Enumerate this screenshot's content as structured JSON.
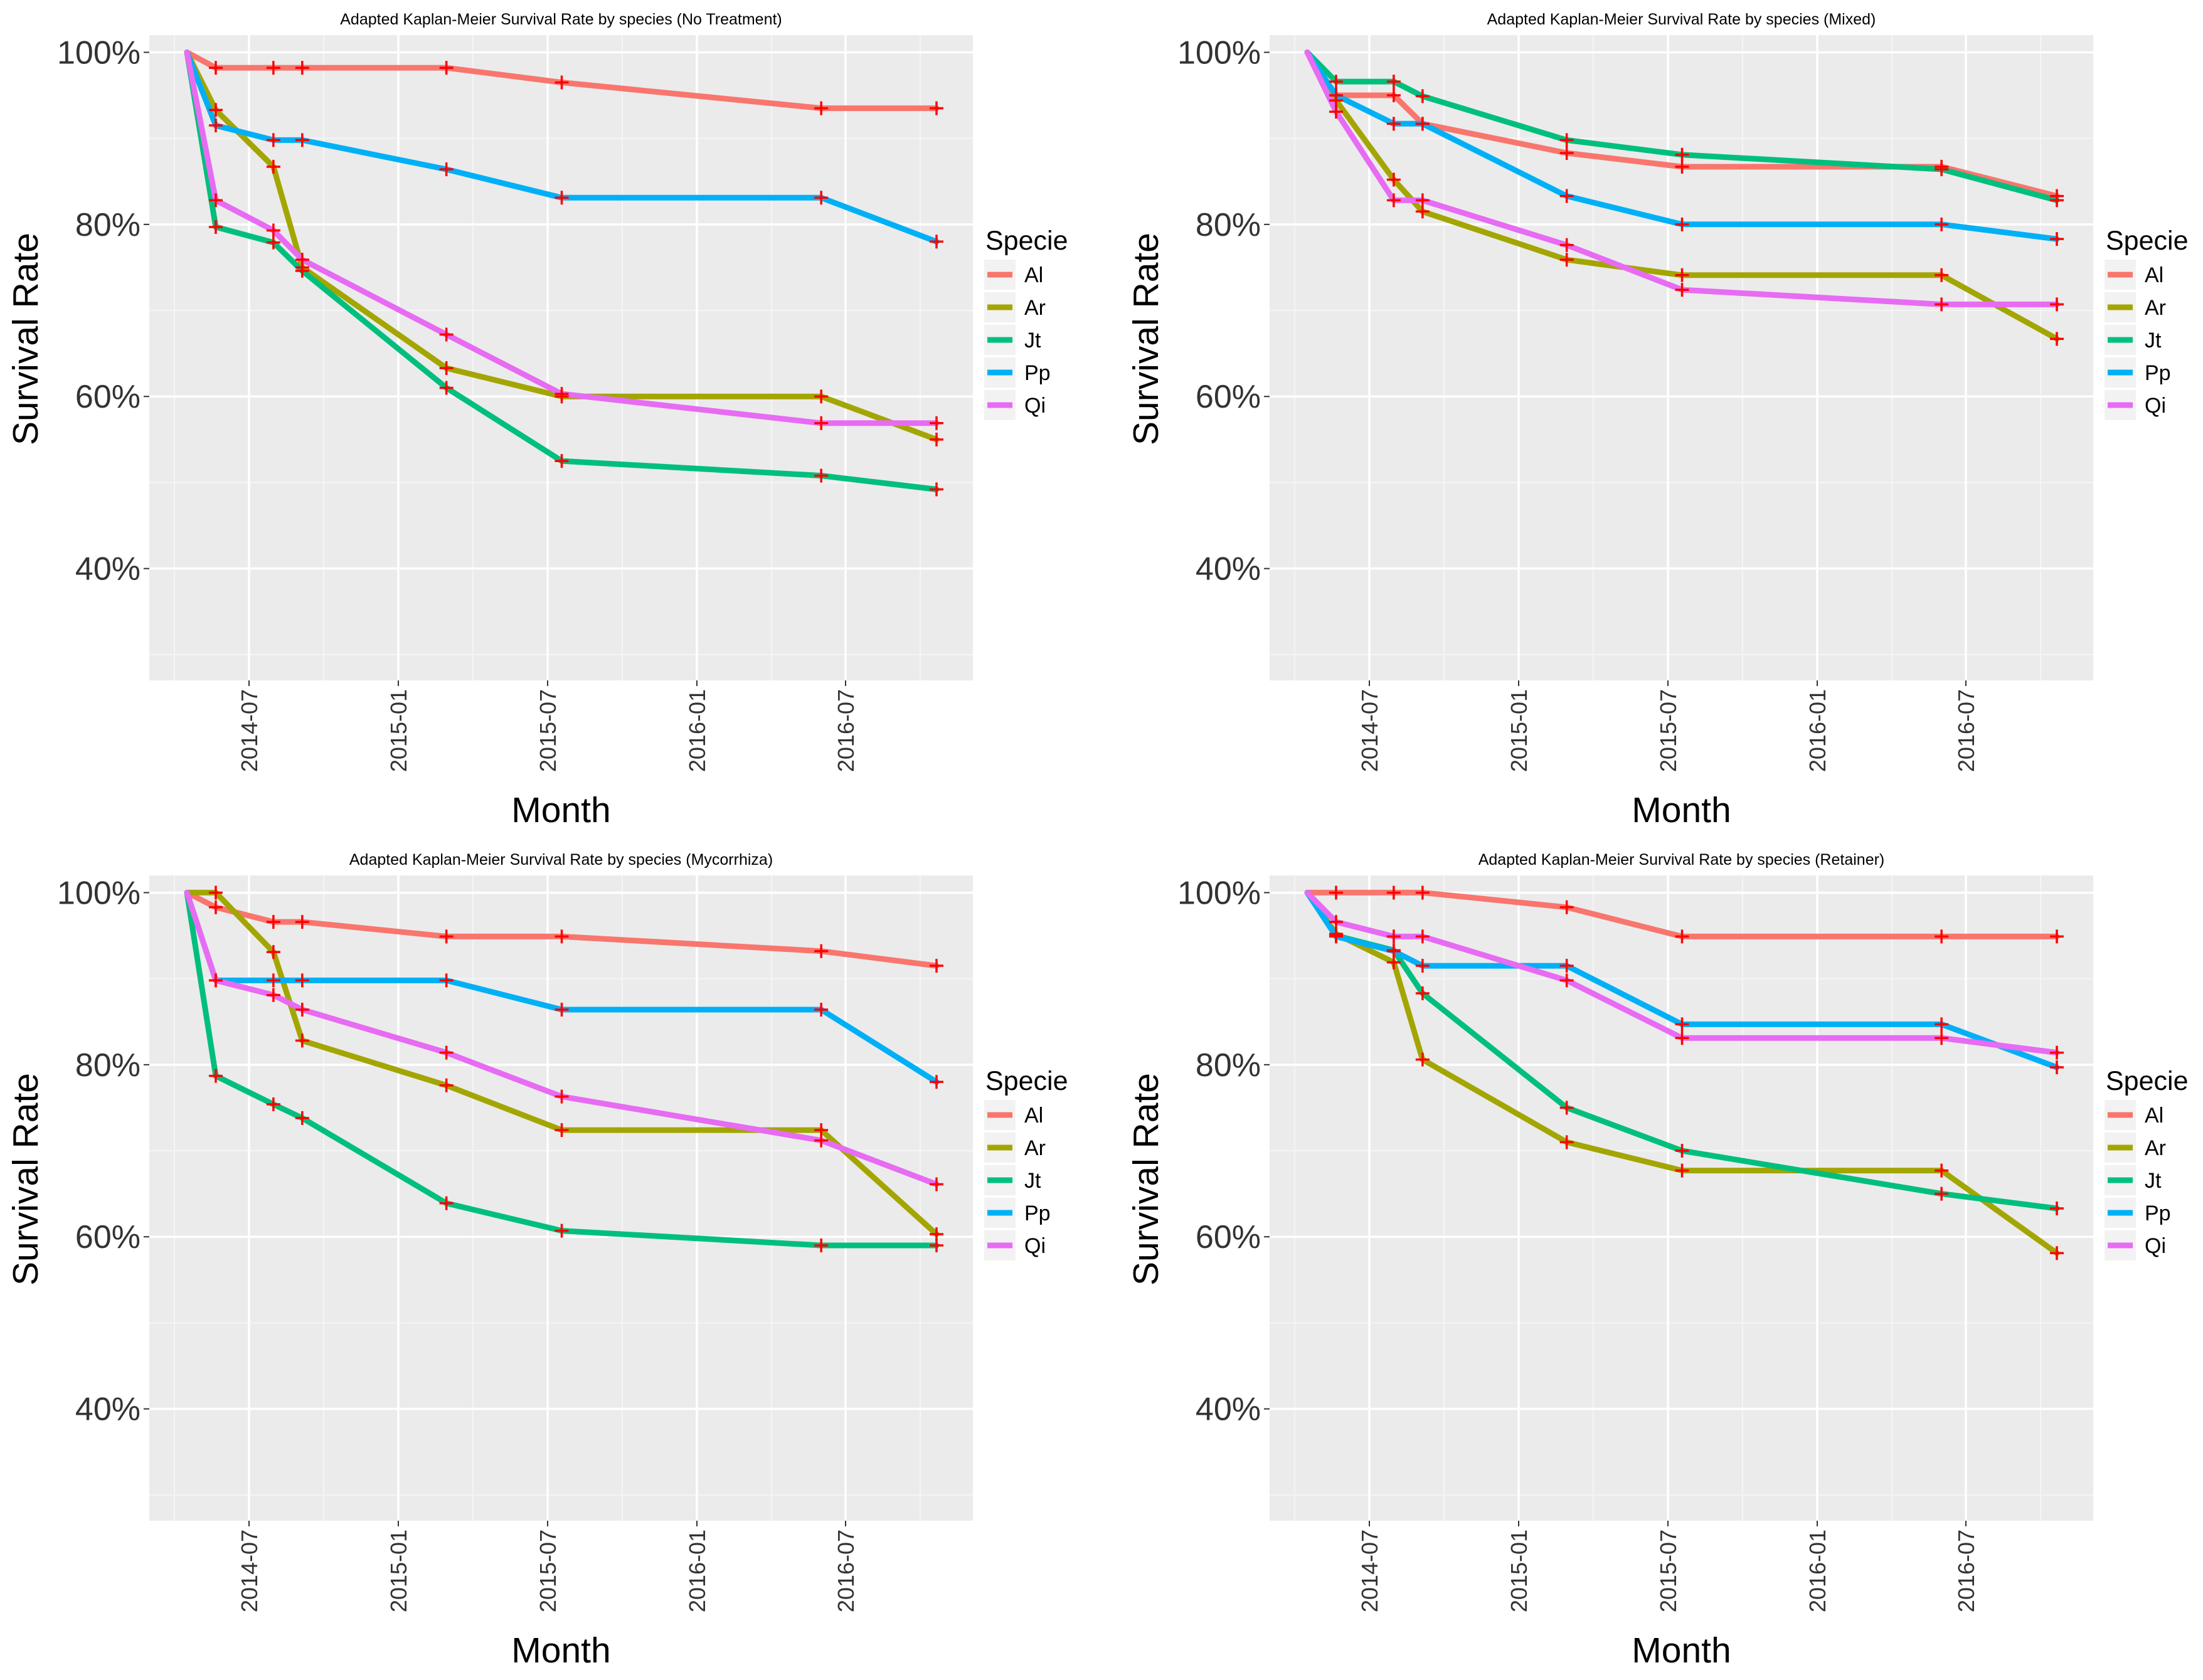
{
  "chart_data": [
    {
      "type": "line",
      "title": "Adapted Kaplan-Meier Survival Rate by species (No Treatment)",
      "xlabel": "Month",
      "ylabel": "Survival Rate",
      "x_ticks": [
        "2014-07",
        "2015-01",
        "2015-07",
        "2016-01",
        "2016-07"
      ],
      "y_ticks": [
        "40%",
        "60%",
        "80%",
        "100%"
      ],
      "ylim": [
        27,
        102
      ],
      "legend_title": "Specie",
      "series": [
        {
          "name": "Al",
          "color": "#F8766D",
          "points": [
            [
              0,
              100
            ],
            [
              1,
              98.2
            ],
            [
              3,
              98.2
            ],
            [
              4,
              98.2
            ],
            [
              9,
              98.2
            ],
            [
              13,
              96.5
            ],
            [
              22,
              93.5
            ],
            [
              26,
              93.5
            ]
          ]
        },
        {
          "name": "Ar",
          "color": "#A3A500",
          "points": [
            [
              0,
              100
            ],
            [
              1,
              93.3
            ],
            [
              3,
              86.7
            ],
            [
              4,
              75.0
            ],
            [
              9,
              63.3
            ],
            [
              13,
              60.0
            ],
            [
              22,
              60.0
            ],
            [
              26,
              55.0
            ]
          ]
        },
        {
          "name": "Jt",
          "color": "#00BF7D",
          "points": [
            [
              0,
              100
            ],
            [
              1,
              79.7
            ],
            [
              3,
              77.9
            ],
            [
              4,
              74.6
            ],
            [
              9,
              61.0
            ],
            [
              13,
              52.5
            ],
            [
              22,
              50.8
            ],
            [
              26,
              49.2
            ]
          ]
        },
        {
          "name": "Pp",
          "color": "#00B0F6",
          "points": [
            [
              0,
              100
            ],
            [
              1,
              91.5
            ],
            [
              3,
              89.8
            ],
            [
              4,
              89.8
            ],
            [
              9,
              86.4
            ],
            [
              13,
              83.1
            ],
            [
              22,
              83.1
            ],
            [
              26,
              78.0
            ]
          ]
        },
        {
          "name": "Qi",
          "color": "#E76BF3",
          "points": [
            [
              0,
              100
            ],
            [
              1,
              82.8
            ],
            [
              3,
              79.3
            ],
            [
              4,
              75.9
            ],
            [
              9,
              67.2
            ],
            [
              13,
              60.3
            ],
            [
              22,
              56.9
            ],
            [
              26,
              56.9
            ]
          ]
        }
      ]
    },
    {
      "type": "line",
      "title": "Adapted Kaplan-Meier Survival Rate by species (Mixed)",
      "xlabel": "Month",
      "ylabel": "Survival Rate",
      "x_ticks": [
        "2014-07",
        "2015-01",
        "2015-07",
        "2016-01",
        "2016-07"
      ],
      "y_ticks": [
        "40%",
        "60%",
        "80%",
        "100%"
      ],
      "ylim": [
        27,
        102
      ],
      "legend_title": "Specie",
      "series": [
        {
          "name": "Al",
          "color": "#F8766D",
          "points": [
            [
              0,
              100
            ],
            [
              1,
              95.0
            ],
            [
              3,
              95.0
            ],
            [
              4,
              91.7
            ],
            [
              9,
              88.3
            ],
            [
              13,
              86.7
            ],
            [
              22,
              86.7
            ],
            [
              26,
              83.3
            ]
          ]
        },
        {
          "name": "Ar",
          "color": "#A3A500",
          "points": [
            [
              0,
              100
            ],
            [
              1,
              94.4
            ],
            [
              3,
              85.2
            ],
            [
              4,
              81.5
            ],
            [
              9,
              75.9
            ],
            [
              13,
              74.1
            ],
            [
              22,
              74.1
            ],
            [
              26,
              66.7
            ]
          ]
        },
        {
          "name": "Jt",
          "color": "#00BF7D",
          "points": [
            [
              0,
              100
            ],
            [
              1,
              96.6
            ],
            [
              3,
              96.6
            ],
            [
              4,
              94.9
            ],
            [
              9,
              89.8
            ],
            [
              13,
              88.1
            ],
            [
              22,
              86.4
            ],
            [
              26,
              82.8
            ]
          ]
        },
        {
          "name": "Pp",
          "color": "#00B0F6",
          "points": [
            [
              0,
              100
            ],
            [
              1,
              95.0
            ],
            [
              3,
              91.7
            ],
            [
              4,
              91.7
            ],
            [
              9,
              83.3
            ],
            [
              13,
              80.0
            ],
            [
              22,
              80.0
            ],
            [
              26,
              78.3
            ]
          ]
        },
        {
          "name": "Qi",
          "color": "#E76BF3",
          "points": [
            [
              0,
              100
            ],
            [
              1,
              93.1
            ],
            [
              3,
              82.8
            ],
            [
              4,
              82.8
            ],
            [
              9,
              77.6
            ],
            [
              13,
              72.4
            ],
            [
              22,
              70.7
            ],
            [
              26,
              70.7
            ]
          ]
        }
      ]
    },
    {
      "type": "line",
      "title": "Adapted Kaplan-Meier Survival Rate by species (Mycorrhiza)",
      "xlabel": "Month",
      "ylabel": "Survival Rate",
      "x_ticks": [
        "2014-07",
        "2015-01",
        "2015-07",
        "2016-01",
        "2016-07"
      ],
      "y_ticks": [
        "40%",
        "60%",
        "80%",
        "100%"
      ],
      "ylim": [
        27,
        102
      ],
      "legend_title": "Specie",
      "series": [
        {
          "name": "Al",
          "color": "#F8766D",
          "points": [
            [
              0,
              100
            ],
            [
              1,
              98.3
            ],
            [
              3,
              96.6
            ],
            [
              4,
              96.6
            ],
            [
              9,
              94.9
            ],
            [
              13,
              94.9
            ],
            [
              22,
              93.2
            ],
            [
              26,
              91.5
            ]
          ]
        },
        {
          "name": "Ar",
          "color": "#A3A500",
          "points": [
            [
              0,
              100
            ],
            [
              1,
              100
            ],
            [
              3,
              93.1
            ],
            [
              4,
              82.8
            ],
            [
              9,
              77.6
            ],
            [
              13,
              72.4
            ],
            [
              22,
              72.4
            ],
            [
              26,
              60.3
            ]
          ]
        },
        {
          "name": "Jt",
          "color": "#00BF7D",
          "points": [
            [
              0,
              100
            ],
            [
              1,
              78.7
            ],
            [
              3,
              75.4
            ],
            [
              4,
              73.8
            ],
            [
              9,
              63.9
            ],
            [
              13,
              60.7
            ],
            [
              22,
              59.0
            ],
            [
              26,
              59.0
            ]
          ]
        },
        {
          "name": "Pp",
          "color": "#00B0F6",
          "points": [
            [
              0,
              100
            ],
            [
              1,
              89.8
            ],
            [
              3,
              89.8
            ],
            [
              4,
              89.8
            ],
            [
              9,
              89.8
            ],
            [
              13,
              86.4
            ],
            [
              22,
              86.4
            ],
            [
              26,
              78.0
            ]
          ]
        },
        {
          "name": "Qi",
          "color": "#E76BF3",
          "points": [
            [
              0,
              100
            ],
            [
              1,
              89.8
            ],
            [
              3,
              88.1
            ],
            [
              4,
              86.4
            ],
            [
              9,
              81.4
            ],
            [
              13,
              76.3
            ],
            [
              22,
              71.2
            ],
            [
              26,
              66.1
            ]
          ]
        }
      ]
    },
    {
      "type": "line",
      "title": "Adapted Kaplan-Meier Survival Rate by species (Retainer)",
      "xlabel": "Month",
      "ylabel": "Survival Rate",
      "x_ticks": [
        "2014-07",
        "2015-01",
        "2015-07",
        "2016-01",
        "2016-07"
      ],
      "y_ticks": [
        "40%",
        "60%",
        "80%",
        "100%"
      ],
      "ylim": [
        27,
        102
      ],
      "legend_title": "Specie",
      "series": [
        {
          "name": "Al",
          "color": "#F8766D",
          "points": [
            [
              0,
              100
            ],
            [
              1,
              100
            ],
            [
              3,
              100
            ],
            [
              4,
              100
            ],
            [
              9,
              98.3
            ],
            [
              13,
              94.9
            ],
            [
              22,
              94.9
            ],
            [
              26,
              94.9
            ]
          ]
        },
        {
          "name": "Ar",
          "color": "#A3A500",
          "points": [
            [
              0,
              100
            ],
            [
              1,
              95.2
            ],
            [
              3,
              91.9
            ],
            [
              4,
              80.6
            ],
            [
              9,
              71.0
            ],
            [
              13,
              67.7
            ],
            [
              22,
              67.7
            ],
            [
              26,
              58.1
            ]
          ]
        },
        {
          "name": "Jt",
          "color": "#00BF7D",
          "points": [
            [
              0,
              100
            ],
            [
              1,
              95.0
            ],
            [
              3,
              93.3
            ],
            [
              4,
              88.3
            ],
            [
              9,
              75.0
            ],
            [
              13,
              70.0
            ],
            [
              22,
              65.0
            ],
            [
              26,
              63.3
            ]
          ]
        },
        {
          "name": "Pp",
          "color": "#00B0F6",
          "points": [
            [
              0,
              100
            ],
            [
              1,
              94.9
            ],
            [
              3,
              93.2
            ],
            [
              4,
              91.5
            ],
            [
              9,
              91.5
            ],
            [
              13,
              84.7
            ],
            [
              22,
              84.7
            ],
            [
              26,
              79.7
            ]
          ]
        },
        {
          "name": "Qi",
          "color": "#E76BF3",
          "points": [
            [
              0,
              100
            ],
            [
              1,
              96.6
            ],
            [
              3,
              94.9
            ],
            [
              4,
              94.9
            ],
            [
              9,
              89.8
            ],
            [
              13,
              83.1
            ],
            [
              22,
              83.1
            ],
            [
              26,
              81.4
            ]
          ]
        }
      ]
    }
  ]
}
